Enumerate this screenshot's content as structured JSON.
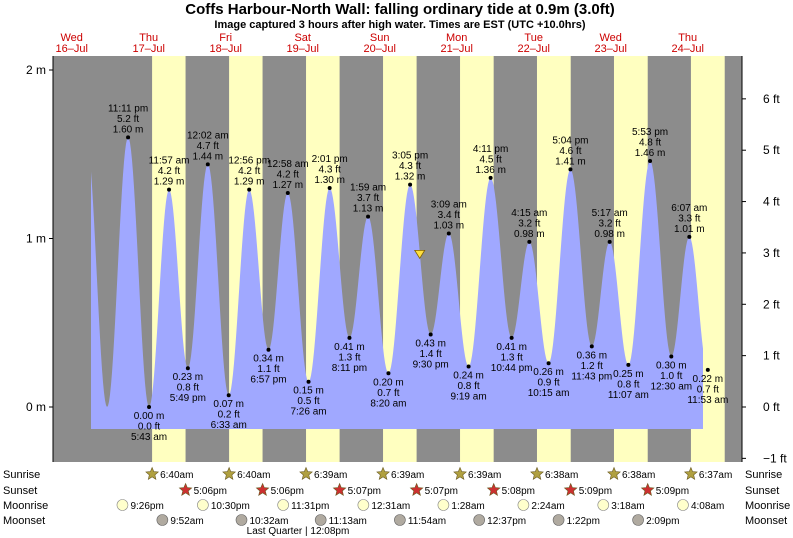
{
  "title": "Coffs Harbour-North Wall: falling  ordinary tide at 0.9m (3.0ft)",
  "subtitle": "Image captured 3 hours after high water. Times are EST (UTC +10.0hrs)",
  "chart_data": {
    "type": "area",
    "title": "Coffs Harbour-North Wall: falling  ordinary tide at 0.9m (3.0ft)",
    "subtitle": "Image captured 3 hours after high water. Times are EST (UTC +10.0hrs)",
    "ylim_m": [
      -0.16,
      2.04
    ],
    "left_axis_ticks": [
      {
        "value": 0,
        "label": "0 m"
      },
      {
        "value": 1,
        "label": "1 m"
      },
      {
        "value": 2,
        "label": "2 m"
      }
    ],
    "right_axis_ticks": [
      {
        "value_ft": -1,
        "label": "−1 ft"
      },
      {
        "value_ft": 0,
        "label": "0 ft"
      },
      {
        "value_ft": 1,
        "label": "1 ft"
      },
      {
        "value_ft": 2,
        "label": "2 ft"
      },
      {
        "value_ft": 3,
        "label": "3 ft"
      },
      {
        "value_ft": 4,
        "label": "4 ft"
      },
      {
        "value_ft": 5,
        "label": "5 ft"
      },
      {
        "value_ft": 6,
        "label": "6 ft"
      }
    ],
    "days": [
      {
        "dow": "Wed",
        "date": "16–Jul",
        "day_index": 0
      },
      {
        "dow": "Thu",
        "date": "17–Jul",
        "day_index": 1
      },
      {
        "dow": "Fri",
        "date": "18–Jul",
        "day_index": 2
      },
      {
        "dow": "Sat",
        "date": "19–Jul",
        "day_index": 3
      },
      {
        "dow": "Sun",
        "date": "20–Jul",
        "day_index": 4
      },
      {
        "dow": "Mon",
        "date": "21–Jul",
        "day_index": 5
      },
      {
        "dow": "Tue",
        "date": "22–Jul",
        "day_index": 6
      },
      {
        "dow": "Wed",
        "date": "23–Jul",
        "day_index": 7
      },
      {
        "dow": "Thu",
        "date": "24–Jul",
        "day_index": 8
      }
    ],
    "daylight": [
      {
        "day_index": 1,
        "sunrise": "6:40am",
        "sunset": "5:06pm"
      },
      {
        "day_index": 2,
        "sunrise": "6:40am",
        "sunset": "5:06pm"
      },
      {
        "day_index": 3,
        "sunrise": "6:39am",
        "sunset": "5:07pm"
      },
      {
        "day_index": 4,
        "sunrise": "6:39am",
        "sunset": "5:07pm"
      },
      {
        "day_index": 5,
        "sunrise": "6:39am",
        "sunset": "5:08pm"
      },
      {
        "day_index": 6,
        "sunrise": "6:38am",
        "sunset": "5:09pm"
      },
      {
        "day_index": 7,
        "sunrise": "6:38am",
        "sunset": "5:09pm"
      },
      {
        "day_index": 8,
        "sunrise": "6:37am",
        "sunset": null
      }
    ],
    "tides": [
      {
        "day": 0,
        "time": "11:11 pm",
        "ft": "5.2 ft",
        "m": 1.6,
        "kind": "high"
      },
      {
        "day": 1,
        "time": "5:43 am",
        "ft": "0.0 ft",
        "m": 0.0,
        "kind": "low"
      },
      {
        "day": 1,
        "time": "11:57 am",
        "ft": "4.2 ft",
        "m": 1.29,
        "kind": "high"
      },
      {
        "day": 1,
        "time": "5:49 pm",
        "ft": "0.8 ft",
        "m": 0.23,
        "kind": "low"
      },
      {
        "day": 2,
        "time": "12:02 am",
        "ft": "4.7 ft",
        "m": 1.44,
        "kind": "high"
      },
      {
        "day": 2,
        "time": "6:33 am",
        "ft": "0.2 ft",
        "m": 0.07,
        "kind": "low"
      },
      {
        "day": 2,
        "time": "12:56 pm",
        "ft": "4.2 ft",
        "m": 1.29,
        "kind": "high"
      },
      {
        "day": 2,
        "time": "6:57 pm",
        "ft": "1.1 ft",
        "m": 0.34,
        "kind": "low"
      },
      {
        "day": 3,
        "time": "12:58 am",
        "ft": "4.2 ft",
        "m": 1.27,
        "kind": "high"
      },
      {
        "day": 3,
        "time": "7:26 am",
        "ft": "0.5 ft",
        "m": 0.15,
        "kind": "low"
      },
      {
        "day": 3,
        "time": "2:01 pm",
        "ft": "4.3 ft",
        "m": 1.3,
        "kind": "high"
      },
      {
        "day": 3,
        "time": "8:11 pm",
        "ft": "1.3 ft",
        "m": 0.41,
        "kind": "low"
      },
      {
        "day": 4,
        "time": "1:59 am",
        "ft": "3.7 ft",
        "m": 1.13,
        "kind": "high"
      },
      {
        "day": 4,
        "time": "8:20 am",
        "ft": "0.7 ft",
        "m": 0.2,
        "kind": "low"
      },
      {
        "day": 4,
        "time": "3:05 pm",
        "ft": "4.3 ft",
        "m": 1.32,
        "kind": "high"
      },
      {
        "day": 4,
        "time": "9:30 pm",
        "ft": "1.4 ft",
        "m": 0.43,
        "kind": "low"
      },
      {
        "day": 5,
        "time": "3:09 am",
        "ft": "3.4 ft",
        "m": 1.03,
        "kind": "high"
      },
      {
        "day": 5,
        "time": "9:19 am",
        "ft": "0.8 ft",
        "m": 0.24,
        "kind": "low"
      },
      {
        "day": 5,
        "time": "4:11 pm",
        "ft": "4.5 ft",
        "m": 1.36,
        "kind": "high"
      },
      {
        "day": 5,
        "time": "10:44 pm",
        "ft": "1.3 ft",
        "m": 0.41,
        "kind": "low"
      },
      {
        "day": 6,
        "time": "4:15 am",
        "ft": "3.2 ft",
        "m": 0.98,
        "kind": "high"
      },
      {
        "day": 6,
        "time": "10:15 am",
        "ft": "0.9 ft",
        "m": 0.26,
        "kind": "low"
      },
      {
        "day": 6,
        "time": "5:04 pm",
        "ft": "4.6 ft",
        "m": 1.41,
        "kind": "high"
      },
      {
        "day": 6,
        "time": "11:43 pm",
        "ft": "1.2 ft",
        "m": 0.36,
        "kind": "low"
      },
      {
        "day": 7,
        "time": "5:17 am",
        "ft": "3.2 ft",
        "m": 0.98,
        "kind": "high"
      },
      {
        "day": 7,
        "time": "11:07 am",
        "ft": "0.8 ft",
        "m": 0.25,
        "kind": "low"
      },
      {
        "day": 7,
        "time": "5:53 pm",
        "ft": "4.8 ft",
        "m": 1.46,
        "kind": "high"
      },
      {
        "day": 8,
        "time": "12:30 am",
        "ft": "1.0 ft",
        "m": 0.3,
        "kind": "low"
      },
      {
        "day": 8,
        "time": "6:07 am",
        "ft": "3.3 ft",
        "m": 1.01,
        "kind": "high"
      },
      {
        "day": 8,
        "time": "11:53 am",
        "ft": "0.7 ft",
        "m": 0.22,
        "kind": "low"
      }
    ],
    "current_marker": {
      "day": 4,
      "time": "6:05 pm",
      "m": 0.9
    },
    "moonrise": [
      {
        "day": 0,
        "time": "9:26pm"
      },
      {
        "day": 1,
        "time": "10:30pm"
      },
      {
        "day": 2,
        "time": "11:31pm"
      },
      {
        "day": 4,
        "time": "12:31am"
      },
      {
        "day": 5,
        "time": "1:28am"
      },
      {
        "day": 6,
        "time": "2:24am"
      },
      {
        "day": 7,
        "time": "3:18am"
      },
      {
        "day": 8,
        "time": "4:08am"
      }
    ],
    "moonset": [
      {
        "day": 1,
        "time": "9:52am"
      },
      {
        "day": 2,
        "time": "10:32am"
      },
      {
        "day": 3,
        "time": "11:13am"
      },
      {
        "day": 4,
        "time": "11:54am"
      },
      {
        "day": 5,
        "time": "12:37pm"
      },
      {
        "day": 6,
        "time": "1:22pm"
      },
      {
        "day": 7,
        "time": "2:09pm"
      }
    ],
    "moon_phase_note": "Last Quarter | 12:08pm"
  },
  "footer": {
    "row_labels": {
      "sunrise": "Sunrise",
      "sunset": "Sunset",
      "moonrise": "Moonrise",
      "moonset": "Moonset"
    }
  },
  "colors": {
    "night": "#8c8c8c",
    "day": "#ffffc0",
    "water": "#a0a8ff",
    "day_label": "#cc0000",
    "sun_icon": "#b0a040",
    "sunset_icon": "#cc3030",
    "moonrise_icon": "#ffffcc",
    "moonset_icon": "#b0aaa0",
    "marker": "#ffe040"
  }
}
